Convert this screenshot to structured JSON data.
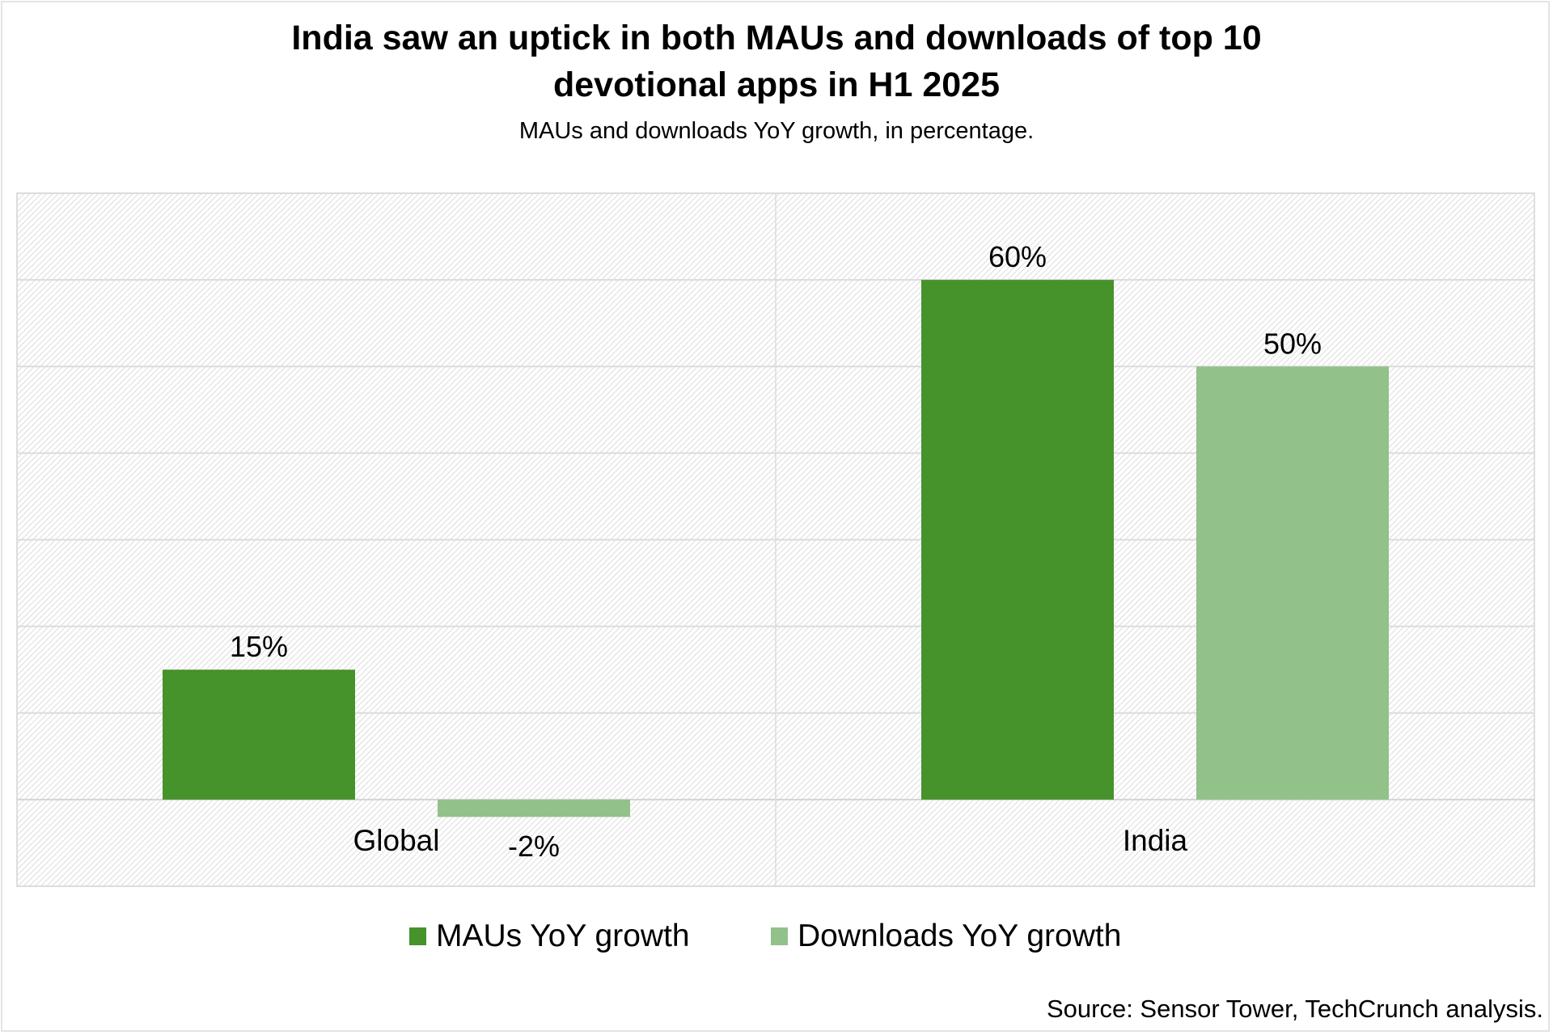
{
  "chart_data": {
    "type": "bar",
    "title": "India saw an uptick in both MAUs and downloads of top 10 devotional apps in H1 2025",
    "title_lines": [
      "India saw an uptick in both MAUs and downloads of top 10",
      "devotional apps in H1 2025"
    ],
    "subtitle": "MAUs and downloads YoY growth, in percentage.",
    "categories": [
      "Global",
      "India"
    ],
    "series": [
      {
        "name": "MAUs YoY growth",
        "color": "#46922b",
        "values": [
          15,
          60
        ],
        "labels": [
          "15%",
          "60%"
        ]
      },
      {
        "name": "Downloads YoY growth",
        "color": "#92c18a",
        "values": [
          -2,
          50
        ],
        "labels": [
          "-2%",
          "50%"
        ]
      }
    ],
    "xlabel": "",
    "ylabel": "",
    "ylim": [
      -10,
      70
    ],
    "gridline_step": 10,
    "y_tick_labels_visible": false,
    "grid": true,
    "background_pattern": "diagonal-hatch",
    "legend_position": "bottom",
    "source": "Source: Sensor Tower, TechCrunch analysis."
  }
}
